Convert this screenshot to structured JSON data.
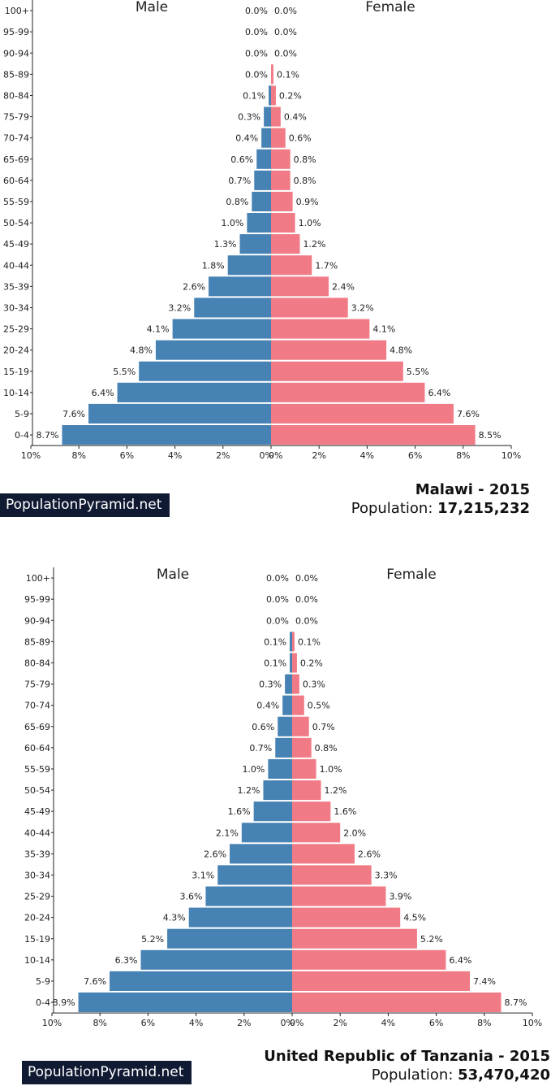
{
  "brand": "PopulationPyramid.net",
  "population_label": "Population:",
  "colors": {
    "male": "#4682b4",
    "female": "#f07b86",
    "axis": "#222222"
  },
  "chart_data": [
    {
      "type": "bar",
      "title": "Malawi - 2015",
      "population": "17,215,232",
      "left_label": "Male",
      "right_label": "Female",
      "xlim": [
        0,
        10
      ],
      "x_ticks": [
        "10%",
        "8%",
        "6%",
        "4%",
        "2%",
        "0%",
        "0%",
        "2%",
        "4%",
        "6%",
        "8%",
        "10%"
      ],
      "categories": [
        "100+",
        "95-99",
        "90-94",
        "85-89",
        "80-84",
        "75-79",
        "70-74",
        "65-69",
        "60-64",
        "55-59",
        "50-54",
        "45-49",
        "40-44",
        "35-39",
        "30-34",
        "25-29",
        "20-24",
        "15-19",
        "10-14",
        "5-9",
        "0-4"
      ],
      "series": [
        {
          "name": "Male",
          "values": [
            0.0,
            0.0,
            0.0,
            0.0,
            0.1,
            0.3,
            0.4,
            0.6,
            0.7,
            0.8,
            1.0,
            1.3,
            1.8,
            2.6,
            3.2,
            4.1,
            4.8,
            5.5,
            6.4,
            7.6,
            8.7
          ],
          "labels": [
            "0.0%",
            "0.0%",
            "0.0%",
            "0.0%",
            "0.1%",
            "0.3%",
            "0.4%",
            "0.6%",
            "0.7%",
            "0.8%",
            "1.0%",
            "1.3%",
            "1.8%",
            "2.6%",
            "3.2%",
            "4.1%",
            "4.8%",
            "5.5%",
            "6.4%",
            "7.6%",
            "8.7%"
          ]
        },
        {
          "name": "Female",
          "values": [
            0.0,
            0.0,
            0.0,
            0.1,
            0.2,
            0.4,
            0.6,
            0.8,
            0.8,
            0.9,
            1.0,
            1.2,
            1.7,
            2.4,
            3.2,
            4.1,
            4.8,
            5.5,
            6.4,
            7.6,
            8.5
          ],
          "labels": [
            "0.0%",
            "0.0%",
            "0.0%",
            "0.1%",
            "0.2%",
            "0.4%",
            "0.6%",
            "0.8%",
            "0.8%",
            "0.9%",
            "1.0%",
            "1.2%",
            "1.7%",
            "2.4%",
            "3.2%",
            "4.1%",
            "4.8%",
            "5.5%",
            "6.4%",
            "7.6%",
            "8.5%"
          ]
        }
      ]
    },
    {
      "type": "bar",
      "title": "United Republic of Tanzania - 2015",
      "population": "53,470,420",
      "left_label": "Male",
      "right_label": "Female",
      "xlim": [
        0,
        10
      ],
      "x_ticks": [
        "10%",
        "8%",
        "6%",
        "4%",
        "2%",
        "0%",
        "0%",
        "2%",
        "4%",
        "6%",
        "8%",
        "10%"
      ],
      "categories": [
        "100+",
        "95-99",
        "90-94",
        "85-89",
        "80-84",
        "75-79",
        "70-74",
        "65-69",
        "60-64",
        "55-59",
        "50-54",
        "45-49",
        "40-44",
        "35-39",
        "30-34",
        "25-29",
        "20-24",
        "15-19",
        "10-14",
        "5-9",
        "0-4"
      ],
      "series": [
        {
          "name": "Male",
          "values": [
            0.0,
            0.0,
            0.0,
            0.1,
            0.1,
            0.3,
            0.4,
            0.6,
            0.7,
            1.0,
            1.2,
            1.6,
            2.1,
            2.6,
            3.1,
            3.6,
            4.3,
            5.2,
            6.3,
            7.6,
            8.9
          ],
          "labels": [
            "0.0%",
            "0.0%",
            "0.0%",
            "0.1%",
            "0.1%",
            "0.3%",
            "0.4%",
            "0.6%",
            "0.7%",
            "1.0%",
            "1.2%",
            "1.6%",
            "2.1%",
            "2.6%",
            "3.1%",
            "3.6%",
            "4.3%",
            "5.2%",
            "6.3%",
            "7.6%",
            "8.9%"
          ]
        },
        {
          "name": "Female",
          "values": [
            0.0,
            0.0,
            0.0,
            0.1,
            0.2,
            0.3,
            0.5,
            0.7,
            0.8,
            1.0,
            1.2,
            1.6,
            2.0,
            2.6,
            3.3,
            3.9,
            4.5,
            5.2,
            6.4,
            7.4,
            8.7
          ],
          "labels": [
            "0.0%",
            "0.0%",
            "0.0%",
            "0.1%",
            "0.2%",
            "0.3%",
            "0.5%",
            "0.7%",
            "0.8%",
            "1.0%",
            "1.2%",
            "1.6%",
            "2.0%",
            "2.6%",
            "3.3%",
            "3.9%",
            "4.5%",
            "5.2%",
            "6.4%",
            "7.4%",
            "8.7%"
          ]
        }
      ]
    }
  ]
}
